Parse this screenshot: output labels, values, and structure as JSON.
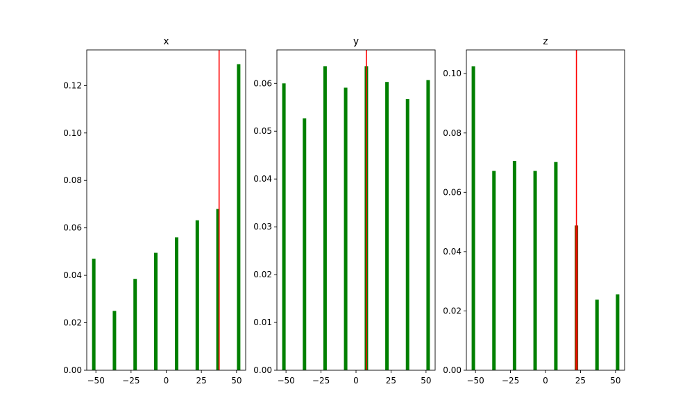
{
  "chart_data": [
    {
      "type": "bar",
      "title": "x",
      "xlim": [
        -56.5,
        56.5
      ],
      "ylim": [
        0,
        0.135
      ],
      "xticks": [
        -50,
        -25,
        0,
        25,
        50
      ],
      "xtick_labels": [
        "−50",
        "−25",
        "0",
        "25",
        "50"
      ],
      "yticks": [
        0,
        0.02,
        0.04,
        0.06,
        0.08,
        0.1,
        0.12
      ],
      "ytick_labels": [
        "0.00",
        "0.02",
        "0.04",
        "0.06",
        "0.08",
        "0.10",
        "0.12"
      ],
      "x": [
        -51.5,
        -36.8,
        -22.1,
        -7.4,
        7.4,
        22.1,
        36.8,
        51.5
      ],
      "values": [
        0.047,
        0.025,
        0.0385,
        0.0495,
        0.056,
        0.0632,
        0.068,
        0.129
      ],
      "highlight_bar": null,
      "vline": 37.6
    },
    {
      "type": "bar",
      "title": "y",
      "xlim": [
        -56.5,
        56.5
      ],
      "ylim": [
        0,
        0.067
      ],
      "xticks": [
        -50,
        -25,
        0,
        25,
        50
      ],
      "xtick_labels": [
        "−50",
        "−25",
        "0",
        "25",
        "50"
      ],
      "yticks": [
        0,
        0.01,
        0.02,
        0.03,
        0.04,
        0.05,
        0.06
      ],
      "ytick_labels": [
        "0.00",
        "0.01",
        "0.02",
        "0.03",
        "0.04",
        "0.05",
        "0.06"
      ],
      "x": [
        -51.5,
        -36.8,
        -22.1,
        -7.4,
        7.4,
        22.1,
        36.8,
        51.5
      ],
      "values": [
        0.06,
        0.0527,
        0.0636,
        0.0591,
        0.0636,
        0.0603,
        0.0567,
        0.0607
      ],
      "highlight_bar": null,
      "vline": 7.4
    },
    {
      "type": "bar",
      "title": "z",
      "xlim": [
        -56.5,
        56.5
      ],
      "ylim": [
        0,
        0.108
      ],
      "xticks": [
        -50,
        -25,
        0,
        25,
        50
      ],
      "xtick_labels": [
        "−50",
        "−25",
        "0",
        "25",
        "50"
      ],
      "yticks": [
        0,
        0.02,
        0.04,
        0.06,
        0.08,
        0.1
      ],
      "ytick_labels": [
        "0.00",
        "0.02",
        "0.04",
        "0.06",
        "0.08",
        "0.10"
      ],
      "x": [
        -51.5,
        -36.8,
        -22.1,
        -7.4,
        7.4,
        22.1,
        36.8,
        51.5
      ],
      "values": [
        0.1025,
        0.0672,
        0.0706,
        0.0672,
        0.0702,
        0.0488,
        0.0238,
        0.0256
      ],
      "highlight_bar": 5,
      "vline": 22.1
    }
  ],
  "colors": {
    "bar": "#008000",
    "bar_highlight": "#7f4000",
    "vline": "#ff0000",
    "axis": "#000000"
  }
}
